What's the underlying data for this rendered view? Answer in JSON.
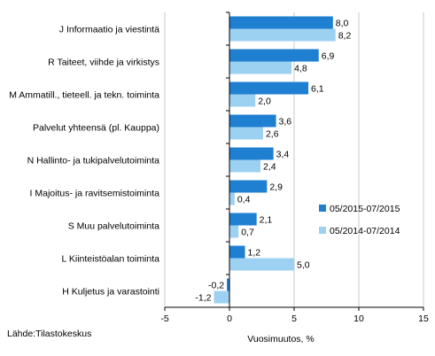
{
  "source": "Lähde:Tilastokeskus",
  "chart_data": {
    "type": "bar",
    "orientation": "horizontal",
    "categories": [
      "J Informaatio ja viestintä",
      "R Taiteet, viihde ja virkistys",
      "M Ammatill., tieteell. ja tekn. toiminta",
      "Palvelut yhteensä (pl. Kauppa)",
      "N Hallinto- ja tukipalvelutoiminta",
      "I Majoitus- ja ravitsemistoiminta",
      "S Muu palvelutoiminta",
      "L Kiinteistöalan toiminta",
      "H Kuljetus ja varastointi"
    ],
    "series": [
      {
        "name": "05/2015-07/2015",
        "color": "#1f7fd1",
        "values": [
          8.0,
          6.9,
          6.1,
          3.6,
          3.4,
          2.9,
          2.1,
          1.2,
          -0.2
        ]
      },
      {
        "name": "05/2014-07/2014",
        "color": "#9dd1f1",
        "values": [
          8.2,
          4.8,
          2.0,
          2.6,
          2.4,
          0.4,
          0.7,
          5.0,
          -1.2
        ]
      }
    ],
    "value_labels": [
      [
        "8,0",
        "6,9",
        "6,1",
        "3,6",
        "3,4",
        "2,9",
        "2,1",
        "1,2",
        "-0,2"
      ],
      [
        "8,2",
        "4,8",
        "2,0",
        "2,6",
        "2,4",
        "0,4",
        "0,7",
        "5,0",
        "-1,2"
      ]
    ],
    "xlabel": "Vuosimuutos, %",
    "xlim": [
      -5,
      15
    ],
    "xticks": [
      -5,
      0,
      5,
      10,
      15
    ],
    "xtick_labels": [
      "-5",
      "0",
      "5",
      "10",
      "15"
    ],
    "grid": "vertical",
    "legend_position": "right"
  }
}
